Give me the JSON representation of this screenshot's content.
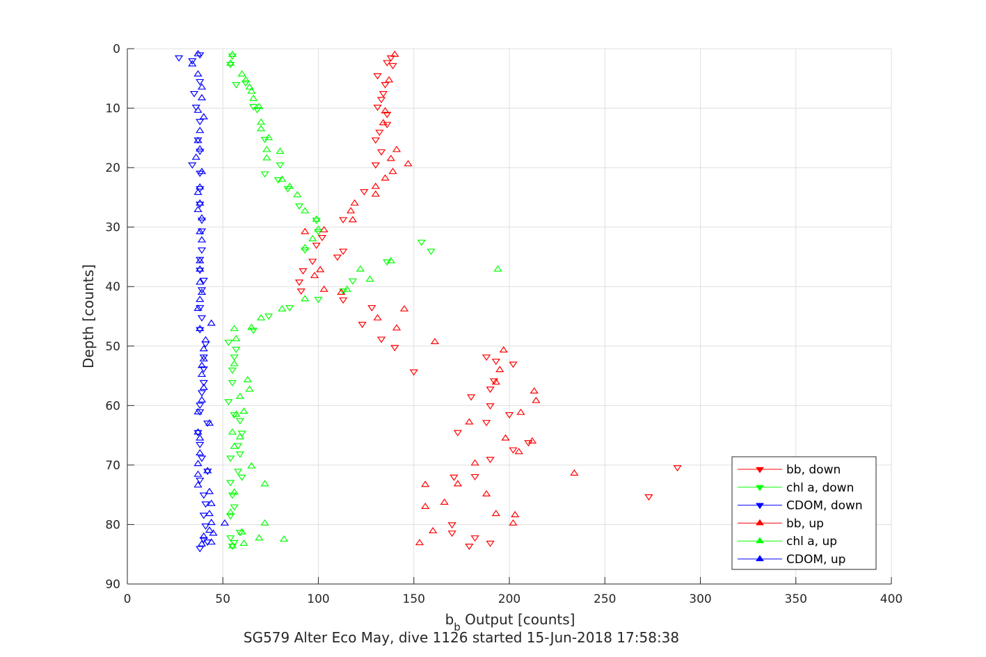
{
  "chart_data": {
    "type": "scatter",
    "title": "SG579 Alter Eco May, dive 1126 started 15-Jun-2018 17:58:38",
    "xlabel": {
      "base": "b",
      "subscript": "b",
      "rest": " Output [counts]"
    },
    "ylabel": "Depth [counts]",
    "xlim": [
      0,
      400
    ],
    "ylim": [
      0,
      90
    ],
    "y_reversed": true,
    "grid": true,
    "legend_position": "bottom-right",
    "x_ticks": [
      0,
      50,
      100,
      150,
      200,
      250,
      300,
      350,
      400
    ],
    "y_ticks": [
      0,
      10,
      20,
      30,
      40,
      50,
      60,
      70,
      80,
      90
    ],
    "legend": [
      "bb, down",
      "chl a, down",
      "CDOM, down",
      "bb, up",
      "chl a, up",
      "CDOM, up"
    ],
    "series": [
      {
        "name": "bb, down",
        "color": "#ff0000",
        "marker": "triangle-down",
        "points": [
          [
            138,
            1.5
          ],
          [
            136,
            2.3
          ],
          [
            139,
            2.8
          ],
          [
            131,
            4.5
          ],
          [
            135,
            6.0
          ],
          [
            134,
            7.5
          ],
          [
            133,
            8.5
          ],
          [
            131,
            9.8
          ],
          [
            136,
            11
          ],
          [
            136,
            12.7
          ],
          [
            132,
            14
          ],
          [
            130,
            15.3
          ],
          [
            133,
            17.3
          ],
          [
            130,
            19.5
          ],
          [
            124,
            24
          ],
          [
            113,
            28.7
          ],
          [
            102,
            31.7
          ],
          [
            97,
            35.7
          ],
          [
            113,
            34
          ],
          [
            110,
            35
          ],
          [
            99,
            33
          ],
          [
            92,
            37.3
          ],
          [
            90,
            39.2
          ],
          [
            91,
            40.7
          ],
          [
            113,
            42.2
          ],
          [
            128,
            43.5
          ],
          [
            123,
            46.3
          ],
          [
            133,
            48.8
          ],
          [
            140,
            50.2
          ],
          [
            150,
            54.3
          ],
          [
            188,
            51.8
          ],
          [
            193,
            52.5
          ],
          [
            202,
            53
          ],
          [
            192,
            55.8
          ],
          [
            190,
            57.2
          ],
          [
            180,
            58.5
          ],
          [
            190,
            60
          ],
          [
            200,
            61.5
          ],
          [
            188,
            62.8
          ],
          [
            173,
            64.5
          ],
          [
            210,
            66.2
          ],
          [
            202,
            67.4
          ],
          [
            190,
            69
          ],
          [
            182,
            71.9
          ],
          [
            171,
            72
          ],
          [
            288,
            70.4
          ],
          [
            273,
            75.3
          ],
          [
            170,
            80
          ],
          [
            170,
            81.4
          ],
          [
            182,
            82.2
          ],
          [
            179,
            83.6
          ],
          [
            190,
            83.1
          ]
        ]
      },
      {
        "name": "chl a, down",
        "color": "#00ff00",
        "marker": "triangle-down",
        "points": [
          [
            55,
            1.2
          ],
          [
            54,
            2.6
          ],
          [
            57,
            6.0
          ],
          [
            62,
            5.7
          ],
          [
            66,
            9.7
          ],
          [
            68,
            10.2
          ],
          [
            72,
            15.2
          ],
          [
            80,
            19.5
          ],
          [
            72,
            21.0
          ],
          [
            79,
            22.0
          ],
          [
            84,
            23.5
          ],
          [
            90,
            26.4
          ],
          [
            99,
            28.8
          ],
          [
            93,
            33.8
          ],
          [
            154,
            32.5
          ],
          [
            159,
            34.0
          ],
          [
            136,
            35.8
          ],
          [
            118,
            39
          ],
          [
            100,
            42.1
          ],
          [
            113,
            40.7
          ],
          [
            100,
            30.7
          ],
          [
            85,
            43.5
          ],
          [
            74,
            44.9
          ],
          [
            66,
            47.3
          ],
          [
            53,
            49.3
          ],
          [
            57,
            50.5
          ],
          [
            56,
            51.8
          ],
          [
            55,
            54.0
          ],
          [
            55,
            56.1
          ],
          [
            53,
            59.3
          ],
          [
            56,
            61.5
          ],
          [
            59,
            62.5
          ],
          [
            60,
            64.6
          ],
          [
            58,
            66.7
          ],
          [
            59,
            68.1
          ],
          [
            54,
            68.8
          ],
          [
            58,
            71.0
          ],
          [
            54,
            72.9
          ],
          [
            60,
            72
          ],
          [
            55,
            75.0
          ],
          [
            56,
            77.0
          ],
          [
            54,
            78.5
          ],
          [
            59,
            81.3
          ],
          [
            54,
            82.2
          ],
          [
            55,
            83.6
          ],
          [
            56,
            83.0
          ]
        ]
      },
      {
        "name": "CDOM, down",
        "color": "#0000ff",
        "marker": "triangle-down",
        "points": [
          [
            27,
            1.5
          ],
          [
            34,
            2.0
          ],
          [
            38,
            1.0
          ],
          [
            38,
            5.5
          ],
          [
            35,
            7.5
          ],
          [
            36,
            9.8
          ],
          [
            38,
            12.2
          ],
          [
            37,
            15.3
          ],
          [
            38,
            17.2
          ],
          [
            34,
            19.5
          ],
          [
            38,
            20.9
          ],
          [
            38,
            23.5
          ],
          [
            38,
            26.1
          ],
          [
            39,
            28.8
          ],
          [
            39,
            30.6
          ],
          [
            39,
            33.8
          ],
          [
            38,
            35.4
          ],
          [
            38,
            37.2
          ],
          [
            40,
            38.9
          ],
          [
            39,
            40.5
          ],
          [
            38,
            43.5
          ],
          [
            39,
            45.2
          ],
          [
            38,
            47.2
          ],
          [
            41,
            49.6
          ],
          [
            40,
            51.8
          ],
          [
            40,
            53.8
          ],
          [
            40,
            56.1
          ],
          [
            39,
            57.8
          ],
          [
            38,
            59.9
          ],
          [
            38,
            61.0
          ],
          [
            42,
            62.9
          ],
          [
            37,
            64.5
          ],
          [
            38,
            66.5
          ],
          [
            39,
            68.8
          ],
          [
            42,
            71.0
          ],
          [
            38,
            72.5
          ],
          [
            40,
            75.0
          ],
          [
            41,
            76.5
          ],
          [
            40,
            78.4
          ],
          [
            41,
            80.2
          ],
          [
            40,
            82.5
          ],
          [
            42,
            82.9
          ],
          [
            38,
            84.0
          ]
        ]
      },
      {
        "name": "bb, up",
        "color": "#ff0000",
        "marker": "triangle-up",
        "points": [
          [
            140,
            1.0
          ],
          [
            137,
            5.3
          ],
          [
            135,
            10.5
          ],
          [
            134,
            12.5
          ],
          [
            141,
            17.0
          ],
          [
            138,
            18.5
          ],
          [
            147,
            19.4
          ],
          [
            139,
            20.7
          ],
          [
            135,
            21.8
          ],
          [
            130,
            23.2
          ],
          [
            130,
            24.5
          ],
          [
            119,
            26.0
          ],
          [
            117,
            27.3
          ],
          [
            118,
            28.8
          ],
          [
            103,
            30.5
          ],
          [
            93,
            30.8
          ],
          [
            101,
            37.2
          ],
          [
            103,
            40.5
          ],
          [
            98,
            38.2
          ],
          [
            112,
            41.0
          ],
          [
            145,
            43.8
          ],
          [
            131,
            45.3
          ],
          [
            141,
            47.0
          ],
          [
            161,
            49.3
          ],
          [
            197,
            50.7
          ],
          [
            195,
            54
          ],
          [
            193,
            56.1
          ],
          [
            213,
            57.6
          ],
          [
            214,
            59.2
          ],
          [
            206,
            61.2
          ],
          [
            198,
            65.5
          ],
          [
            212,
            66
          ],
          [
            205,
            67.8
          ],
          [
            182,
            69.7
          ],
          [
            179,
            62.8
          ],
          [
            234,
            71.4
          ],
          [
            173,
            73.2
          ],
          [
            156,
            73.3
          ],
          [
            156,
            77.0
          ],
          [
            166,
            76.3
          ],
          [
            188,
            74.9
          ],
          [
            193,
            78.2
          ],
          [
            202,
            79.8
          ],
          [
            160,
            81.1
          ],
          [
            153,
            83.1
          ],
          [
            203,
            78.4
          ]
        ]
      },
      {
        "name": "chl a, up",
        "color": "#00ff00",
        "marker": "triangle-up",
        "points": [
          [
            55,
            1.0
          ],
          [
            54,
            2.5
          ],
          [
            60,
            4.3
          ],
          [
            62,
            5.3
          ],
          [
            64,
            6.5
          ],
          [
            65,
            7.2
          ],
          [
            66,
            8.4
          ],
          [
            69,
            9.8
          ],
          [
            70,
            12.4
          ],
          [
            70,
            13.5
          ],
          [
            74,
            15.0
          ],
          [
            73,
            17.0
          ],
          [
            80,
            17.3
          ],
          [
            73,
            18.4
          ],
          [
            81,
            22.0
          ],
          [
            85,
            23.2
          ],
          [
            89,
            24.6
          ],
          [
            93,
            27.3
          ],
          [
            99,
            28.7
          ],
          [
            97,
            32.0
          ],
          [
            93,
            33.5
          ],
          [
            100,
            30.4
          ],
          [
            194,
            37.1
          ],
          [
            122,
            37.1
          ],
          [
            138,
            35.7
          ],
          [
            127,
            38.8
          ],
          [
            115,
            40.5
          ],
          [
            93,
            42.1
          ],
          [
            81,
            43.8
          ],
          [
            70,
            45.3
          ],
          [
            65,
            46.9
          ],
          [
            56,
            47.1
          ],
          [
            57,
            48.8
          ],
          [
            56,
            53.0
          ],
          [
            63,
            55.7
          ],
          [
            64,
            57.3
          ],
          [
            59,
            58.5
          ],
          [
            61,
            61.0
          ],
          [
            57,
            61.5
          ],
          [
            55,
            64.5
          ],
          [
            59,
            65.3
          ],
          [
            56,
            66.9
          ],
          [
            65,
            70.2
          ],
          [
            72,
            73.2
          ],
          [
            56,
            74.6
          ],
          [
            54,
            78.0
          ],
          [
            72,
            79.8
          ],
          [
            60,
            81.3
          ],
          [
            69,
            82.3
          ],
          [
            82,
            82.5
          ],
          [
            61,
            83.2
          ],
          [
            55,
            83.6
          ]
        ]
      },
      {
        "name": "CDOM, up",
        "color": "#0000ff",
        "marker": "triangle-up",
        "points": [
          [
            37,
            0.9
          ],
          [
            34,
            2.6
          ],
          [
            37,
            4.3
          ],
          [
            39,
            6.5
          ],
          [
            39,
            8.3
          ],
          [
            37,
            10.4
          ],
          [
            40,
            11.5
          ],
          [
            38,
            13.8
          ],
          [
            37,
            15.5
          ],
          [
            38,
            16.9
          ],
          [
            36,
            18.3
          ],
          [
            39,
            20.7
          ],
          [
            38,
            23.3
          ],
          [
            37,
            24.2
          ],
          [
            38,
            26.0
          ],
          [
            37,
            27.1
          ],
          [
            39,
            28.5
          ],
          [
            38,
            30.8
          ],
          [
            39,
            32.2
          ],
          [
            38,
            35.7
          ],
          [
            38,
            37.1
          ],
          [
            38,
            39.3
          ],
          [
            39,
            41.0
          ],
          [
            38,
            42.2
          ],
          [
            37,
            43.7
          ],
          [
            44,
            46.2
          ],
          [
            38,
            47.1
          ],
          [
            41,
            49.0
          ],
          [
            40,
            50.5
          ],
          [
            40,
            52.2
          ],
          [
            39,
            53.3
          ],
          [
            39,
            54.8
          ],
          [
            40,
            57.0
          ],
          [
            39,
            59.1
          ],
          [
            37,
            61.1
          ],
          [
            43,
            63.0
          ],
          [
            37,
            64.5
          ],
          [
            38,
            65.5
          ],
          [
            38,
            68.0
          ],
          [
            37,
            69.8
          ],
          [
            37,
            71.6
          ],
          [
            42,
            71.0
          ],
          [
            37,
            73.4
          ],
          [
            43,
            74.5
          ],
          [
            44,
            76.5
          ],
          [
            43,
            78.2
          ],
          [
            44,
            79.7
          ],
          [
            51,
            79.8
          ],
          [
            45,
            81.5
          ],
          [
            43,
            81.0
          ],
          [
            40,
            82.0
          ],
          [
            44,
            83.0
          ],
          [
            39,
            83.3
          ]
        ]
      }
    ]
  }
}
